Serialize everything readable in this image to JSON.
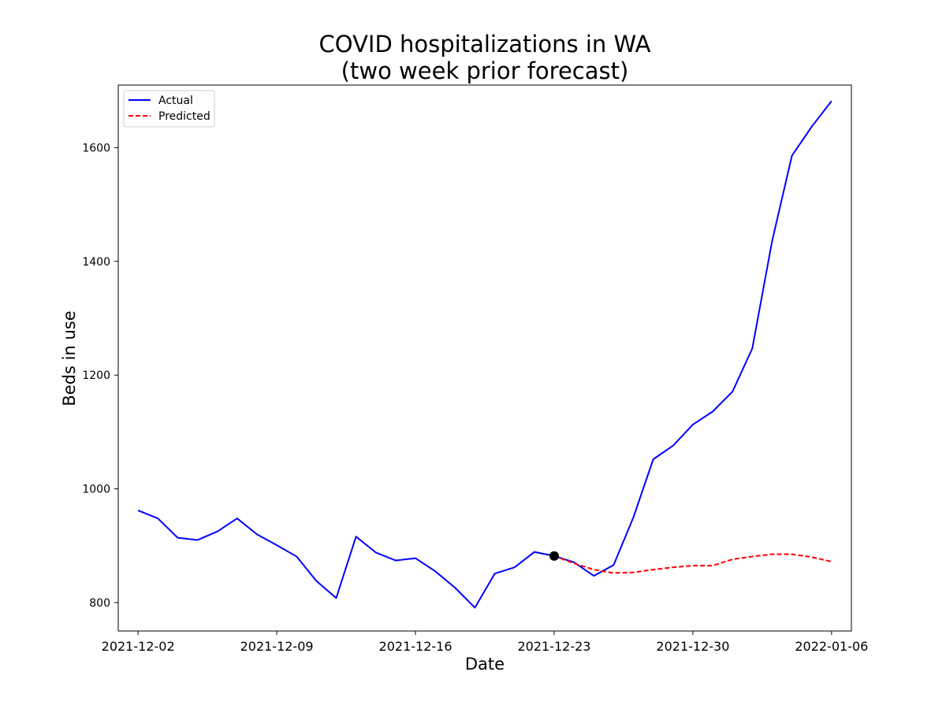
{
  "chart_data": {
    "type": "line",
    "title": [
      "COVID hospitalizations in WA",
      "(two week prior forecast)"
    ],
    "xlabel": "Date",
    "ylabel": "Beds in use",
    "x_start": "2021-12-02",
    "x_end": "2022-01-06",
    "xlim": [
      "2021-12-01",
      "2022-01-07"
    ],
    "ylim": [
      750,
      1710
    ],
    "xticks": [
      "2021-12-02",
      "2021-12-09",
      "2021-12-16",
      "2021-12-23",
      "2021-12-30",
      "2022-01-06"
    ],
    "yticks": [
      800,
      1000,
      1200,
      1400,
      1600
    ],
    "grid": false,
    "legend_position": "top-left",
    "series": [
      {
        "name": "Actual",
        "color": "#0000ff",
        "style": "solid",
        "x": [
          "2021-12-02",
          "2021-12-03",
          "2021-12-04",
          "2021-12-05",
          "2021-12-06",
          "2021-12-07",
          "2021-12-08",
          "2021-12-09",
          "2021-12-10",
          "2021-12-11",
          "2021-12-12",
          "2021-12-13",
          "2021-12-14",
          "2021-12-15",
          "2021-12-16",
          "2021-12-17",
          "2021-12-18",
          "2021-12-19",
          "2021-12-20",
          "2021-12-21",
          "2021-12-22",
          "2021-12-23",
          "2021-12-24",
          "2021-12-25",
          "2021-12-26",
          "2021-12-27",
          "2021-12-28",
          "2021-12-29",
          "2021-12-30",
          "2021-12-31",
          "2022-01-01",
          "2022-01-02",
          "2022-01-03",
          "2022-01-04",
          "2022-01-05",
          "2022-01-06"
        ],
        "y": [
          962,
          948,
          914,
          910,
          925,
          948,
          920,
          901,
          881,
          838,
          808,
          916,
          888,
          874,
          878,
          855,
          826,
          791,
          851,
          862,
          889,
          882,
          871,
          847,
          866,
          950,
          1052,
          1076,
          1113,
          1136,
          1171,
          1247,
          1436,
          1586,
          1637,
          1682
        ]
      },
      {
        "name": "Predicted",
        "color": "#ff0000",
        "style": "dashed",
        "x": [
          "2021-12-23",
          "2021-12-24",
          "2021-12-25",
          "2021-12-26",
          "2021-12-27",
          "2021-12-28",
          "2021-12-29",
          "2021-12-30",
          "2021-12-31",
          "2022-01-01",
          "2022-01-02",
          "2022-01-03",
          "2022-01-04",
          "2022-01-05",
          "2022-01-06"
        ],
        "y": [
          882,
          869,
          858,
          852,
          853,
          858,
          862,
          865,
          865,
          876,
          881,
          885,
          885,
          880,
          872
        ]
      }
    ],
    "marker": {
      "x": "2021-12-23",
      "y": 882,
      "color": "#000000"
    }
  }
}
